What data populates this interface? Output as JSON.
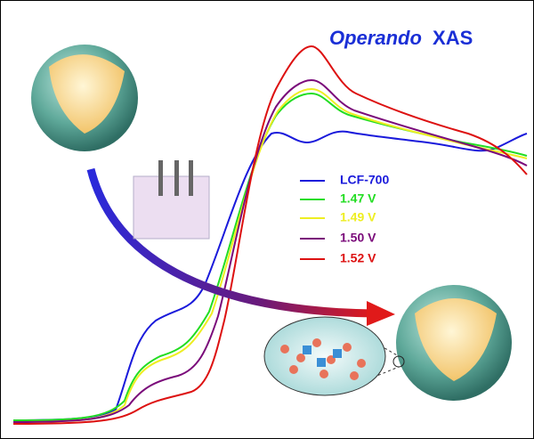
{
  "title": {
    "emphasis": "Operando",
    "text": "XAS",
    "color": "#1a2fd6"
  },
  "legend": [
    {
      "label": "LCF-700",
      "color": "#1a1adb"
    },
    {
      "label": "1.47 V",
      "color": "#22dd22"
    },
    {
      "label": "1.49 V",
      "color": "#eeee22"
    },
    {
      "label": "1.50 V",
      "color": "#7a0a7a"
    },
    {
      "label": "1.52 V",
      "color": "#dd1111"
    }
  ]
}
